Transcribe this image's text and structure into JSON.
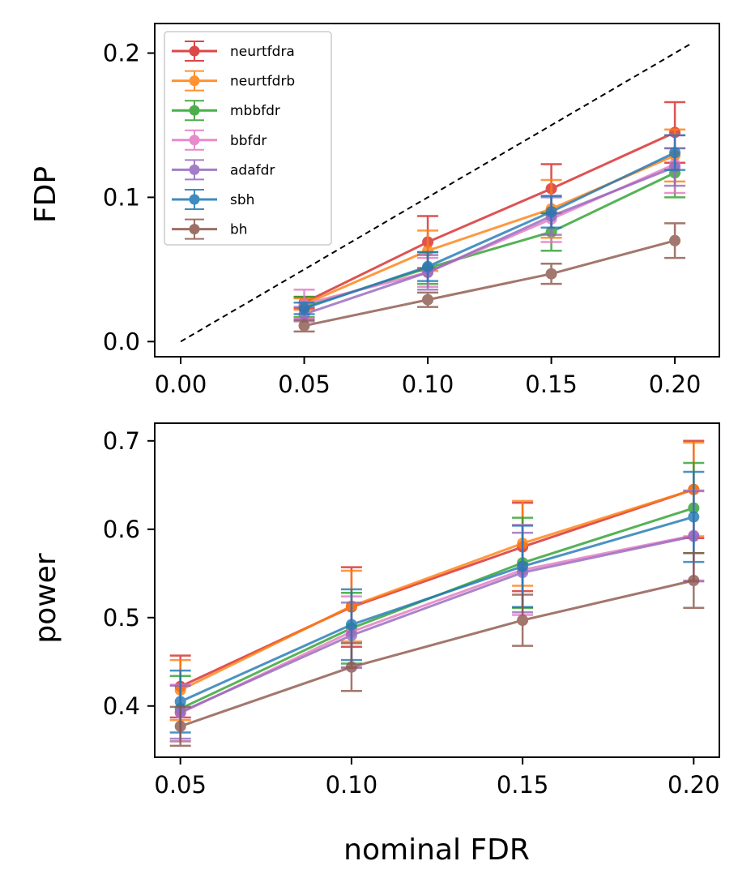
{
  "chart_data": [
    {
      "type": "line",
      "title": "",
      "xlabel": "",
      "ylabel": "FDP",
      "xlim": [
        -0.0105,
        0.218
      ],
      "ylim": [
        -0.0105,
        0.2205
      ],
      "xticks": [
        "0.00",
        "0.05",
        "0.10",
        "0.15",
        "0.20"
      ],
      "xtick_values": [
        0,
        0.05,
        0.1,
        0.15,
        0.2
      ],
      "yticks": [
        "0.0",
        "0.1",
        "0.2"
      ],
      "ytick_values": [
        0,
        0.1,
        0.2
      ],
      "reference_line": {
        "style": "dashed",
        "color": "#000000",
        "x": [
          0,
          0.207
        ],
        "y": [
          0,
          0.207
        ]
      },
      "legend": {
        "position": "upper-left",
        "entries": [
          "neurtfdra",
          "neurtfdrb",
          "mbbfdr",
          "bbfdr",
          "adafdr",
          "sbh",
          "bh"
        ]
      },
      "x": [
        0.05,
        0.1,
        0.15,
        0.2
      ],
      "series": [
        {
          "name": "neurtfdra",
          "color": "#d62728",
          "values": [
            0.027,
            0.069,
            0.106,
            0.145
          ],
          "err": [
            0.004,
            0.018,
            0.017,
            0.021
          ]
        },
        {
          "name": "neurtfdrb",
          "color": "#ff7f0e",
          "values": [
            0.026,
            0.063,
            0.092,
            0.129
          ],
          "err": [
            0.004,
            0.014,
            0.02,
            0.018
          ]
        },
        {
          "name": "mbbfdr",
          "color": "#2ca02c",
          "values": [
            0.024,
            0.051,
            0.076,
            0.117
          ],
          "err": [
            0.007,
            0.011,
            0.013,
            0.017
          ]
        },
        {
          "name": "bbfdr",
          "color": "#e377c2",
          "values": [
            0.026,
            0.048,
            0.085,
            0.123
          ],
          "err": [
            0.01,
            0.01,
            0.016,
            0.02
          ]
        },
        {
          "name": "adafdr",
          "color": "#9467bd",
          "values": [
            0.019,
            0.048,
            0.087,
            0.121
          ],
          "err": [
            0.005,
            0.012,
            0.013,
            0.013
          ]
        },
        {
          "name": "sbh",
          "color": "#1f77b4",
          "values": [
            0.023,
            0.052,
            0.09,
            0.131
          ],
          "err": [
            0.004,
            0.01,
            0.011,
            0.012
          ]
        },
        {
          "name": "bh",
          "color": "#8c564b",
          "values": [
            0.011,
            0.029,
            0.047,
            0.07
          ],
          "err": [
            0.004,
            0.005,
            0.007,
            0.012
          ]
        }
      ]
    },
    {
      "type": "line",
      "title": "",
      "xlabel": "nominal FDR",
      "ylabel": "power",
      "xlim": [
        0.0425,
        0.2075
      ],
      "ylim": [
        0.342,
        0.72
      ],
      "xticks": [
        "0.05",
        "0.10",
        "0.15",
        "0.20"
      ],
      "xtick_values": [
        0.05,
        0.1,
        0.15,
        0.2
      ],
      "yticks": [
        "0.4",
        "0.5",
        "0.6",
        "0.7"
      ],
      "ytick_values": [
        0.4,
        0.5,
        0.6,
        0.7
      ],
      "x": [
        0.05,
        0.1,
        0.15,
        0.2
      ],
      "series": [
        {
          "name": "neurtfdra",
          "color": "#d62728",
          "values": [
            0.422,
            0.512,
            0.58,
            0.645
          ],
          "err": [
            0.035,
            0.045,
            0.05,
            0.055
          ]
        },
        {
          "name": "neurtfdrb",
          "color": "#ff7f0e",
          "values": [
            0.418,
            0.513,
            0.584,
            0.645
          ],
          "err": [
            0.034,
            0.04,
            0.048,
            0.053
          ]
        },
        {
          "name": "mbbfdr",
          "color": "#2ca02c",
          "values": [
            0.397,
            0.488,
            0.562,
            0.624
          ],
          "err": [
            0.037,
            0.04,
            0.051,
            0.051
          ]
        },
        {
          "name": "bbfdr",
          "color": "#e377c2",
          "values": [
            0.392,
            0.484,
            0.554,
            0.593
          ],
          "err": [
            0.032,
            0.04,
            0.051,
            0.051
          ]
        },
        {
          "name": "adafdr",
          "color": "#9467bd",
          "values": [
            0.393,
            0.48,
            0.551,
            0.592
          ],
          "err": [
            0.03,
            0.037,
            0.045,
            0.051
          ]
        },
        {
          "name": "sbh",
          "color": "#1f77b4",
          "values": [
            0.405,
            0.492,
            0.558,
            0.614
          ],
          "err": [
            0.035,
            0.04,
            0.046,
            0.051
          ]
        },
        {
          "name": "bh",
          "color": "#8c564b",
          "values": [
            0.377,
            0.444,
            0.497,
            0.542
          ],
          "err": [
            0.022,
            0.027,
            0.029,
            0.031
          ]
        }
      ]
    }
  ]
}
